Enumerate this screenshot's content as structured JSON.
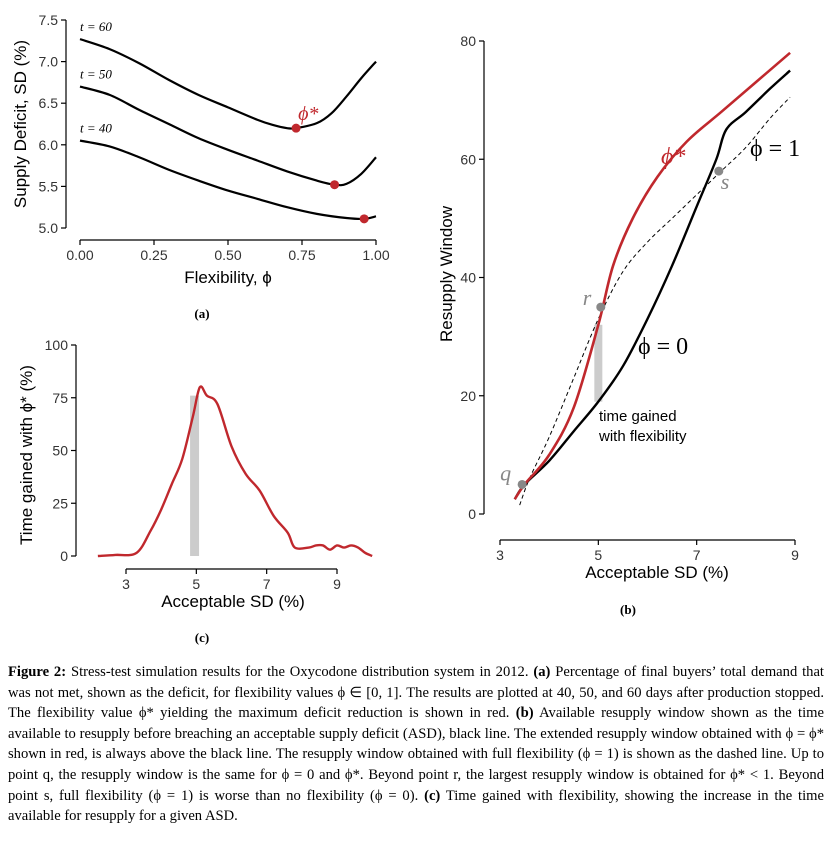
{
  "chart_data": [
    {
      "panel": "(a)",
      "type": "line",
      "xlabel": "Flexibility, ϕ",
      "ylabel": "Supply Deficit, SD (%)",
      "xlim": [
        0,
        1
      ],
      "ylim": [
        5.0,
        7.5
      ],
      "xticks": [
        "0.00",
        "0.25",
        "0.50",
        "0.75",
        "1.00"
      ],
      "yticks": [
        "5.0",
        "5.5",
        "6.0",
        "6.5",
        "7.0",
        "7.5"
      ],
      "series": [
        {
          "name": "t = 60",
          "x": [
            0,
            0.1,
            0.2,
            0.3,
            0.4,
            0.5,
            0.6,
            0.65,
            0.7,
            0.73,
            0.8,
            0.85,
            0.9,
            0.95,
            1.0
          ],
          "y": [
            7.27,
            7.15,
            6.98,
            6.78,
            6.6,
            6.45,
            6.3,
            6.24,
            6.2,
            6.2,
            6.26,
            6.38,
            6.58,
            6.8,
            7.0
          ]
        },
        {
          "name": "t = 50",
          "x": [
            0,
            0.1,
            0.2,
            0.3,
            0.4,
            0.5,
            0.6,
            0.7,
            0.8,
            0.86,
            0.9,
            0.95,
            1.0
          ],
          "y": [
            6.7,
            6.6,
            6.42,
            6.25,
            6.08,
            5.94,
            5.81,
            5.68,
            5.57,
            5.52,
            5.53,
            5.65,
            5.85
          ]
        },
        {
          "name": "t = 40",
          "x": [
            0,
            0.1,
            0.2,
            0.3,
            0.4,
            0.5,
            0.6,
            0.7,
            0.8,
            0.9,
            0.96,
            1.0
          ],
          "y": [
            6.05,
            5.98,
            5.85,
            5.7,
            5.57,
            5.45,
            5.35,
            5.25,
            5.17,
            5.12,
            5.11,
            5.14
          ]
        }
      ],
      "optimum_points": [
        {
          "x": 0.73,
          "y": 6.2
        },
        {
          "x": 0.86,
          "y": 5.52
        },
        {
          "x": 0.96,
          "y": 5.11
        }
      ],
      "annotation": "ϕ*",
      "colors": {
        "curve": "#000000",
        "optimum": "#c0282d"
      }
    },
    {
      "panel": "(b)",
      "type": "line",
      "xlabel": "Acceptable SD (%)",
      "ylabel": "Resupply Window",
      "xlim": [
        2.6,
        9.0
      ],
      "ylim": [
        -1,
        81
      ],
      "xticks": [
        "3",
        "5",
        "7",
        "9"
      ],
      "yticks": [
        "0",
        "20",
        "40",
        "60",
        "80"
      ],
      "series": [
        {
          "name": "ϕ*",
          "x": [
            3.3,
            3.5,
            4.0,
            4.5,
            5.0,
            5.3,
            5.7,
            6.2,
            6.8,
            7.5,
            8.2,
            8.9
          ],
          "y": [
            2.5,
            5,
            10,
            18,
            32,
            42,
            50,
            57,
            63,
            68,
            73,
            78
          ]
        },
        {
          "name": "ϕ = 0",
          "x": [
            3.3,
            3.5,
            4.0,
            4.5,
            5.0,
            5.5,
            6.0,
            6.5,
            7.0,
            7.4,
            7.6,
            8.0,
            8.5,
            8.9
          ],
          "y": [
            2.5,
            5,
            9,
            14,
            19,
            25,
            33,
            42,
            52,
            60,
            65,
            68,
            72,
            75
          ]
        },
        {
          "name": "ϕ = 1",
          "x": [
            3.4,
            3.6,
            4.0,
            4.5,
            5.0,
            5.5,
            6.0,
            6.5,
            7.0,
            7.5,
            8.0,
            8.5,
            8.9
          ],
          "y": [
            1.5,
            6,
            13,
            23,
            33,
            41,
            46,
            50,
            54,
            58,
            62,
            67,
            70.5
          ]
        }
      ],
      "points": [
        {
          "label": "q",
          "x": 3.45,
          "y": 5
        },
        {
          "label": "r",
          "x": 5.05,
          "y": 35
        },
        {
          "label": "s",
          "x": 7.45,
          "y": 58
        }
      ],
      "gain_bar": {
        "x": 5.0,
        "y_low": 19,
        "y_high": 32
      },
      "series_labels": {
        "opt": "ϕ*",
        "zero": "ϕ = 0",
        "one": "ϕ = 1"
      },
      "annotation": [
        "time gained",
        "with flexibility"
      ],
      "colors": {
        "opt": "#c0282d",
        "zero": "#000000",
        "one": "#000000",
        "points": "#888888",
        "bar": "#cccccc"
      }
    },
    {
      "panel": "(c)",
      "type": "line",
      "xlabel": "Acceptable SD (%)",
      "ylabel": "Time gained with ϕ* (%)",
      "xlim": [
        1.8,
        10.1
      ],
      "ylim": [
        -3,
        100
      ],
      "xticks": [
        "3",
        "5",
        "7",
        "9"
      ],
      "yticks": [
        "0",
        "25",
        "50",
        "75",
        "100"
      ],
      "series": [
        {
          "name": "time gained",
          "x": [
            2.2,
            2.7,
            3.3,
            3.7,
            4.0,
            4.3,
            4.6,
            4.9,
            5.1,
            5.3,
            5.6,
            6.0,
            6.4,
            6.8,
            7.2,
            7.6,
            7.8,
            8.2,
            8.4,
            8.6,
            8.8,
            9.0,
            9.2,
            9.4,
            9.6,
            9.8,
            10.0
          ],
          "y": [
            0,
            0.5,
            1.5,
            12,
            22,
            34,
            46,
            66,
            80,
            76,
            72,
            52,
            39,
            31,
            19,
            11,
            4,
            4,
            5,
            5,
            3,
            5,
            4,
            5,
            4,
            1.5,
            0
          ]
        }
      ],
      "gain_bar": {
        "x": 4.95,
        "y_low": 0,
        "y_high": 76
      },
      "colors": {
        "line": "#c0282d",
        "bar": "#cccccc"
      }
    }
  ],
  "panel_labels": {
    "a": "(a)",
    "b": "(b)",
    "c": "(c)"
  },
  "caption": {
    "label": "Figure 2:",
    "text_1": " Stress-test simulation results for the Oxycodone distribution system in 2012. ",
    "bold_a": "(a)",
    "text_2": " Percentage of final buyers’ total demand that was not met, shown as the deficit, for flexibility values ϕ ∈ [0, 1]. The results are plotted at 40, 50, and 60 days after production stopped. The flexibility value ϕ* yielding the maximum deficit reduction is shown in red. ",
    "bold_b": "(b)",
    "text_3": " Available resupply window shown as the time available to resupply before breaching an acceptable supply deficit (ASD), black line. The extended resupply window obtained with ϕ = ϕ* shown in red, is always above the black line. The resupply window obtained with full flexibility (ϕ = 1) is shown as the dashed line. Up to point q, the resupply window is the same for ϕ = 0 and ϕ*. Beyond point r, the largest resupply window is obtained for ϕ* < 1. Beyond point s, full flexibility (ϕ = 1) is worse than no flexibility (ϕ = 0). ",
    "bold_c": "(c)",
    "text_4": " Time gained with flexibility, showing the increase in the time available for resupply for a given ASD."
  }
}
